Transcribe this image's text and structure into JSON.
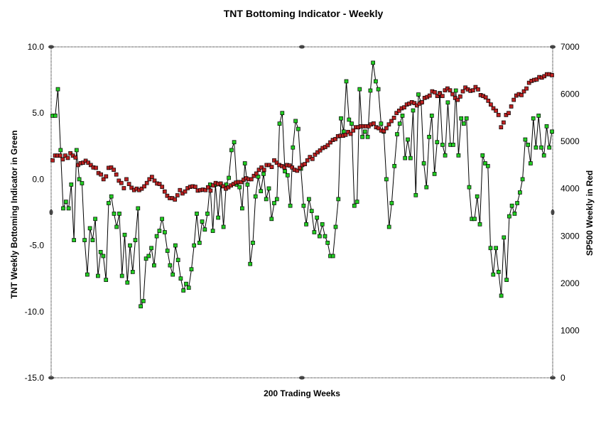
{
  "chart_data": {
    "type": "line",
    "title": "TNT Bottoming Indicator - Weekly",
    "xlabel": "200 Trading Weeks",
    "ylabel_left": "TNT Weekly Bottoming Indicator in Green",
    "ylabel_right": "SP500 Weekly in Red",
    "ylim_left": [
      -15,
      10
    ],
    "ylim_right": [
      0,
      7000
    ],
    "yticks_left": [
      "10.0",
      "5.0",
      "0.0",
      "-5.0",
      "-10.0",
      "-15.0"
    ],
    "yticks_right": [
      "7000",
      "6000",
      "5000",
      "4000",
      "3000",
      "2000",
      "1000",
      "0"
    ],
    "grid": false,
    "legend": "none",
    "series": [
      {
        "axis": "left",
        "color": "#22cc22",
        "values": [
          4.8,
          4.8,
          6.8,
          2.2,
          -2.2,
          -1.7,
          -2.2,
          -0.4,
          -4.6,
          2.2,
          0.0,
          -0.3,
          -4.6,
          -7.2,
          -3.7,
          -4.6,
          -3.0,
          -7.3,
          -5.5,
          -5.8,
          -7.6,
          -1.8,
          -1.3,
          -2.6,
          -3.6,
          -2.6,
          -7.3,
          -4.2,
          -7.8,
          -5.0,
          -7.0,
          -4.6,
          -2.2,
          -9.6,
          -9.2,
          -6.0,
          -5.8,
          -5.2,
          -6.5,
          -4.3,
          -3.9,
          -3.0,
          -4.0,
          -5.4,
          -6.5,
          -7.2,
          -5.0,
          -6.1,
          -7.5,
          -8.4,
          -7.9,
          -8.2,
          -6.8,
          -5.0,
          -2.6,
          -4.8,
          -3.2,
          -3.8,
          -2.6,
          -0.4,
          -3.9,
          -0.4,
          -2.9,
          -0.4,
          -3.6,
          -0.4,
          0.1,
          2.2,
          2.8,
          -0.4,
          -0.6,
          -2.2,
          1.2,
          -0.4,
          -6.4,
          -4.8,
          -1.3,
          0.2,
          -0.9,
          0.4,
          -1.5,
          -0.7,
          -3.0,
          -1.8,
          -1.5,
          4.2,
          5.0,
          0.6,
          0.3,
          -2.0,
          2.4,
          4.4,
          3.8,
          0.8,
          -2.0,
          -3.4,
          -1.5,
          -2.4,
          -4.0,
          -2.9,
          -4.3,
          -3.4,
          -4.3,
          -4.8,
          -5.8,
          -5.8,
          -3.6,
          -1.5,
          4.6,
          3.6,
          7.4,
          4.5,
          4.2,
          -2.0,
          -1.7,
          6.8,
          3.2,
          3.6,
          3.2,
          6.7,
          8.8,
          7.4,
          6.8,
          4.2,
          3.6,
          0.0,
          -3.6,
          -1.8,
          1.0,
          3.4,
          4.2,
          4.8,
          1.6,
          3.0,
          1.6,
          5.2,
          -1.2,
          6.4,
          5.8,
          1.2,
          -0.6,
          3.2,
          4.8,
          0.4,
          2.8,
          6.5,
          2.6,
          1.8,
          5.8,
          2.6,
          2.6,
          6.7,
          1.8,
          4.6,
          4.2,
          4.6,
          -0.6,
          -3.0,
          -3.0,
          -1.3,
          -3.4,
          1.8,
          1.2,
          1.0,
          -5.2,
          -7.2,
          -5.2,
          -7.0,
          -8.8,
          -4.4,
          -7.6,
          -2.8,
          -2.0,
          -2.6,
          -1.8,
          -1.0,
          0.0,
          3.0,
          2.6,
          1.2,
          4.6,
          2.4,
          4.8,
          2.4,
          1.8,
          4.0,
          2.4,
          3.6
        ]
      },
      {
        "axis": "right",
        "color": "#bb2222",
        "values": [
          4600,
          4700,
          4700,
          4700,
          4620,
          4700,
          4650,
          4750,
          4700,
          4660,
          4500,
          4540,
          4550,
          4590,
          4550,
          4500,
          4450,
          4440,
          4330,
          4300,
          4200,
          4260,
          4440,
          4450,
          4400,
          4300,
          4170,
          4120,
          4010,
          4200,
          4100,
          4020,
          3970,
          4000,
          3970,
          4000,
          4050,
          4120,
          4200,
          4250,
          4170,
          4110,
          4100,
          4040,
          3940,
          3850,
          3800,
          3800,
          3770,
          3860,
          3970,
          3900,
          3940,
          4010,
          4040,
          4050,
          4040,
          3960,
          3970,
          3980,
          3970,
          4030,
          3960,
          4070,
          4120,
          4100,
          4110,
          4050,
          4000,
          4030,
          4070,
          4100,
          4130,
          4140,
          4140,
          4190,
          4220,
          4200,
          4200,
          4270,
          4320,
          4400,
          4450,
          4400,
          4500,
          4500,
          4460,
          4600,
          4550,
          4500,
          4480,
          4450,
          4500,
          4490,
          4450,
          4400,
          4380,
          4440,
          4500,
          4520,
          4600,
          4670,
          4630,
          4720,
          4770,
          4810,
          4860,
          4880,
          4920,
          4980,
          5030,
          5050,
          5110,
          5120,
          5120,
          5140,
          5200,
          5160,
          5230,
          5300,
          5300,
          5320,
          5320,
          5320,
          5320,
          5360,
          5380,
          5300,
          5280,
          5230,
          5220,
          5280,
          5360,
          5430,
          5500,
          5600,
          5650,
          5700,
          5720,
          5780,
          5800,
          5830,
          5810,
          5760,
          5800,
          5830,
          5920,
          5940,
          5970,
          6060,
          6040,
          5960,
          6010,
          5960,
          6080,
          6120,
          6080,
          6000,
          5920,
          5880,
          5950,
          6060,
          6140,
          6100,
          6070,
          6080,
          6150,
          6100,
          5980,
          5960,
          5930,
          5860,
          5780,
          5700,
          5650,
          5560,
          5300,
          5400,
          5560,
          5600,
          5740,
          5880,
          5970,
          6000,
          5980,
          6060,
          6120,
          6240,
          6280,
          6300,
          6310,
          6360,
          6350,
          6380,
          6420,
          6420,
          6400
        ]
      }
    ]
  }
}
